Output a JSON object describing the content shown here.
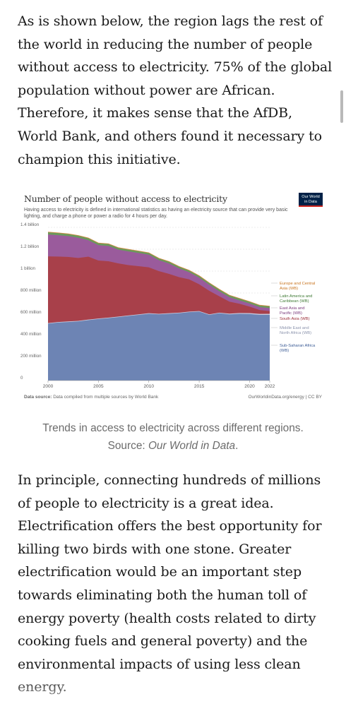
{
  "article": {
    "paragraph1": "As is shown below, the region lags the rest of the world in reducing the number of people without access to electricity. 75% of the global population without power are African. Therefore, it makes sense that the AfDB, World Bank, and others found it necessary to champion this initiative.",
    "paragraph2": "In principle, connecting hundreds of millions of people to electricity is a great idea. Electrification offers the best opportunity for killing two birds with one stone. Greater electrification would be an important step towards eliminating both the human toll of energy poverty (health costs related to dirty cooking fuels and general poverty) and the environmental impacts of using less clean energy.",
    "caption_text": "Trends in access to electricity across different regions. Source: ",
    "caption_source": "Our World in Data",
    "caption_end": "."
  },
  "chart_data": {
    "type": "area",
    "title": "Number of people without access to electricity",
    "subtitle": "Having access to electricity is defined in international statistics as having an electricity source that can provide very basic lighting, and charge a phone or power a radio for 4 hours per day.",
    "logo_line1": "Our World",
    "logo_line2": "in Data",
    "source_label": "Data source:",
    "source_text": "Data compiled from multiple sources by World Bank",
    "source_right": "OurWorldinData.org/energy | CC BY",
    "xlim": [
      2000,
      2022
    ],
    "ylim": [
      0,
      1400000000
    ],
    "x_ticks": [
      "2000",
      "2005",
      "2010",
      "2015",
      "2020",
      "2022"
    ],
    "x_tick_values": [
      2000,
      2005,
      2010,
      2015,
      2020,
      2022
    ],
    "y_ticks": [
      "0",
      "200 million",
      "400 million",
      "600 million",
      "800 million",
      "1 billion",
      "1.2 billion",
      "1.4 billion"
    ],
    "y_tick_values": [
      0,
      200000000,
      400000000,
      600000000,
      800000000,
      1000000000,
      1200000000,
      1400000000
    ],
    "stacked": true,
    "grid": true,
    "legend": "right",
    "x": [
      2000,
      2001,
      2002,
      2003,
      2004,
      2005,
      2006,
      2007,
      2008,
      2009,
      2010,
      2011,
      2012,
      2013,
      2014,
      2015,
      2016,
      2017,
      2018,
      2019,
      2020,
      2021,
      2022
    ],
    "series": [
      {
        "name": "Sub-Saharan Africa (WB)",
        "color": "#6d84b4",
        "values": [
          520000000,
          530000000,
          535000000,
          540000000,
          552000000,
          562000000,
          570000000,
          580000000,
          590000000,
          600000000,
          610000000,
          605000000,
          610000000,
          615000000,
          625000000,
          630000000,
          600000000,
          615000000,
          605000000,
          610000000,
          608000000,
          600000000,
          600000000
        ]
      },
      {
        "name": "Middle East and North Africa (WB)",
        "color": "#c5cbe0",
        "values": [
          5000000,
          5000000,
          5000000,
          5000000,
          5000000,
          5000000,
          5000000,
          5000000,
          5000000,
          5000000,
          5000000,
          5000000,
          5000000,
          5000000,
          5000000,
          5000000,
          5000000,
          5000000,
          6000000,
          7000000,
          8000000,
          9000000,
          10000000
        ]
      },
      {
        "name": "South Asia (WB)",
        "color": "#a8404a",
        "values": [
          610000000,
          598000000,
          590000000,
          575000000,
          575000000,
          530000000,
          515000000,
          485000000,
          460000000,
          440000000,
          420000000,
          390000000,
          360000000,
          325000000,
          295000000,
          245000000,
          215000000,
          150000000,
          110000000,
          85000000,
          60000000,
          35000000,
          25000000
        ]
      },
      {
        "name": "East Asia and Pacific (WB)",
        "color": "#9a5b9c",
        "values": [
          200000000,
          195000000,
          190000000,
          185000000,
          150000000,
          140000000,
          140000000,
          125000000,
          125000000,
          120000000,
          115000000,
          100000000,
          95000000,
          80000000,
          65000000,
          60000000,
          55000000,
          45000000,
          40000000,
          30000000,
          28000000,
          27000000,
          27000000
        ]
      },
      {
        "name": "Latin America and Caribbean (WB)",
        "color": "#6a9a5b",
        "values": [
          20000000,
          20000000,
          19000000,
          19000000,
          19000000,
          18000000,
          18000000,
          17000000,
          17000000,
          17000000,
          16000000,
          16000000,
          16000000,
          16000000,
          16000000,
          16000000,
          16000000,
          17000000,
          17000000,
          17000000,
          16000000,
          16000000,
          16000000
        ]
      },
      {
        "name": "Europe and Central Asia (WB)",
        "color": "#d98a40",
        "values": [
          2000000,
          2000000,
          2000000,
          2000000,
          2000000,
          2000000,
          2000000,
          2000000,
          2000000,
          2000000,
          2000000,
          2000000,
          2000000,
          2000000,
          2000000,
          2000000,
          2000000,
          2000000,
          2000000,
          2000000,
          2000000,
          2000000,
          2000000
        ]
      }
    ],
    "legend_labels": [
      {
        "line1": "Europe and Central",
        "line2": "Asia (WB)",
        "color": "#c8741f"
      },
      {
        "line1": "Latin America and",
        "line2": "Caribbean (WB)",
        "color": "#3f7a34"
      },
      {
        "line1": "East Asia and",
        "line2": "Pacific (WB)",
        "color": "#7a3b7c"
      },
      {
        "line1": "South Asia (WB)",
        "line2": "",
        "color": "#9a2b36"
      },
      {
        "line1": "Middle East and",
        "line2": "North Africa (WB)",
        "color": "#8c94ad"
      },
      {
        "line1": "Sub-Saharan Africa",
        "line2": "(WB)",
        "color": "#3b5b95"
      }
    ]
  }
}
